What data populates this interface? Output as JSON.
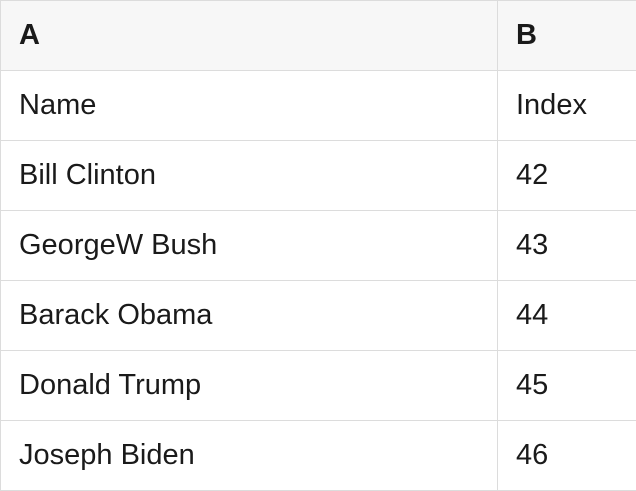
{
  "theme": {
    "header_bg": "#f7f7f7",
    "row_bg": "#ffffff",
    "border_color": "#dcdcdc",
    "text_color": "#1a1a1a"
  },
  "table": {
    "columns": [
      {
        "label": "A"
      },
      {
        "label": "B"
      }
    ],
    "rows": [
      {
        "a": "Name",
        "b": "Index"
      },
      {
        "a": "Bill Clinton",
        "b": "42"
      },
      {
        "a": "GeorgeW Bush",
        "b": "43"
      },
      {
        "a": "Barack Obama",
        "b": "44"
      },
      {
        "a": "Donald Trump",
        "b": "45"
      },
      {
        "a": "Joseph Biden",
        "b": "46"
      }
    ]
  }
}
